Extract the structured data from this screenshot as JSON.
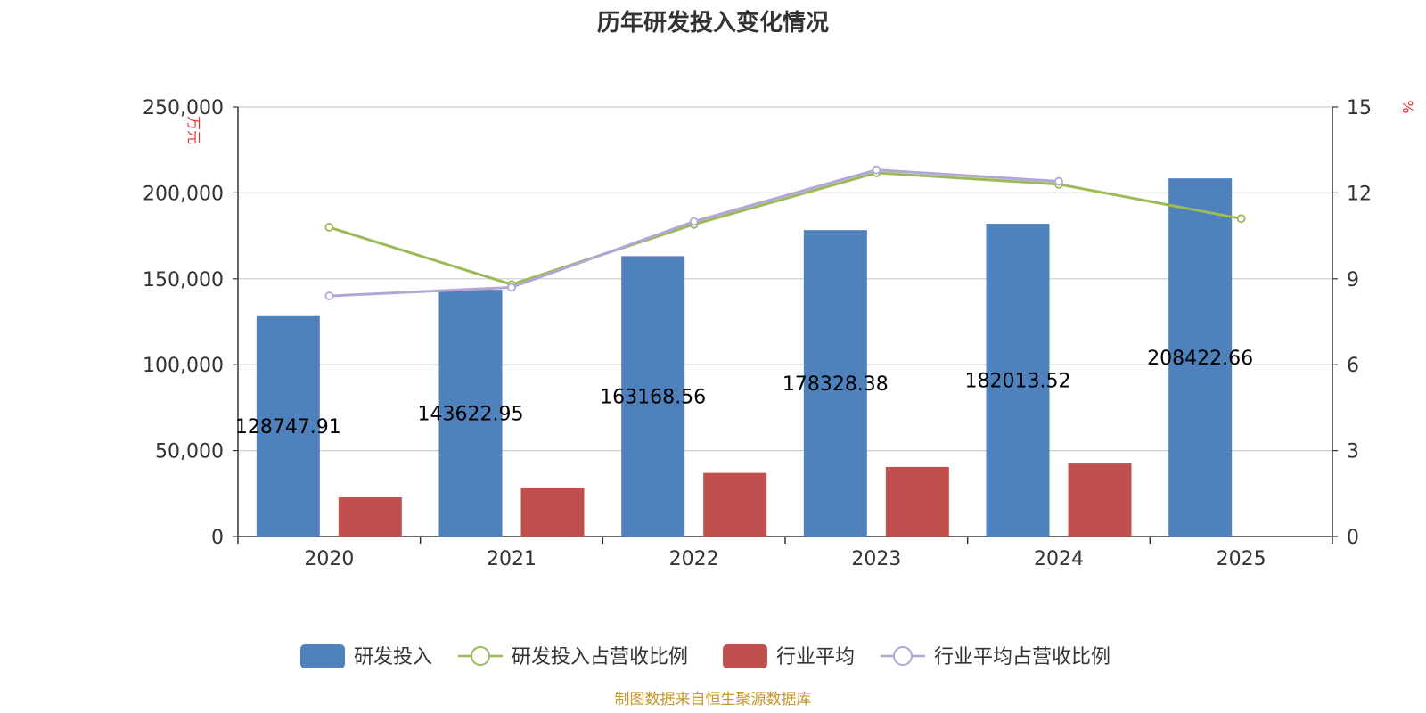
{
  "chart_data": {
    "type": "bar",
    "title": "历年研发投入变化情况",
    "categories": [
      "2020",
      "2021",
      "2022",
      "2023",
      "2024",
      "2025"
    ],
    "left_axis": {
      "unit": "万元",
      "range": [
        0,
        250000
      ],
      "ticks": [
        "0",
        "50,000",
        "100,000",
        "150,000",
        "200,000",
        "250,000"
      ]
    },
    "right_axis": {
      "unit": "%",
      "range": [
        0,
        15
      ],
      "ticks": [
        "0",
        "3",
        "6",
        "9",
        "12",
        "15"
      ]
    },
    "series": [
      {
        "name": "研发投入",
        "kind": "bar",
        "axis": "left",
        "color": "#4f81bd",
        "values": [
          128747.91,
          143622.95,
          163168.56,
          178328.38,
          182013.52,
          208422.66
        ],
        "labels": [
          "128747.91",
          "143622.95",
          "163168.56",
          "178328.38",
          "182013.52",
          "208422.66"
        ]
      },
      {
        "name": "研发投入占营收比例",
        "kind": "line",
        "axis": "right",
        "color": "#9bbb59",
        "values": [
          10.8,
          8.8,
          10.9,
          12.7,
          12.3,
          11.1
        ]
      },
      {
        "name": "行业平均",
        "kind": "bar",
        "axis": "left",
        "color": "#c0504d",
        "values": [
          22800,
          28500,
          37000,
          40500,
          42500,
          null
        ]
      },
      {
        "name": "行业平均占营收比例",
        "kind": "line",
        "axis": "right",
        "color": "#b3a5d6",
        "values": [
          8.4,
          8.7,
          11.0,
          12.8,
          12.4,
          null
        ]
      }
    ],
    "grid": true,
    "legend_position": "bottom",
    "source": "制图数据来自恒生聚源数据库"
  }
}
